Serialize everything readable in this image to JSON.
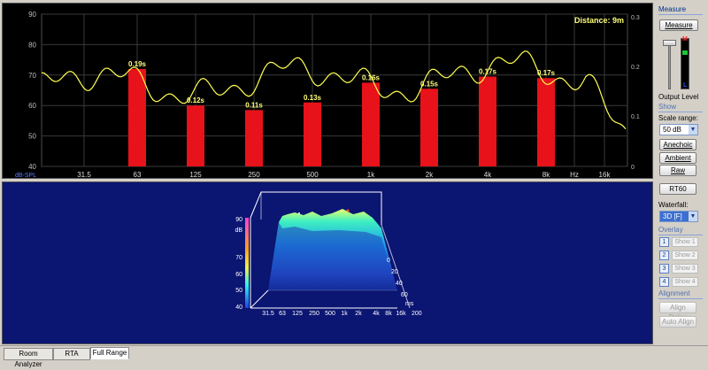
{
  "rta": {
    "distance_label": "Distance: 9m",
    "ylabel": "dB-SPL",
    "y_ticks": [
      "90",
      "80",
      "70",
      "60",
      "50",
      "40"
    ],
    "right_ticks": [
      "0.3",
      "0.2",
      "0.1",
      "0"
    ],
    "x_ticks": [
      "31.5",
      "63",
      "125",
      "250",
      "500",
      "1k",
      "2k",
      "4k",
      "8k",
      "Hz",
      "16k"
    ],
    "bars": [
      {
        "freq": "63",
        "level": 72,
        "rt": "0.19s"
      },
      {
        "freq": "125",
        "level": 60,
        "rt": "0.12s"
      },
      {
        "freq": "250",
        "level": 58.5,
        "rt": "0.11s"
      },
      {
        "freq": "500",
        "level": 61,
        "rt": "0.13s"
      },
      {
        "freq": "1k",
        "level": 67.5,
        "rt": "0.16s"
      },
      {
        "freq": "2k",
        "level": 65.5,
        "rt": "0.15s"
      },
      {
        "freq": "4k",
        "level": 69.5,
        "rt": "0.17s"
      },
      {
        "freq": "8k",
        "level": 69,
        "rt": "0.17s"
      }
    ],
    "colors": {
      "bar": "#e8121a",
      "curve": "#ffff50",
      "grid": "#3a3a3a",
      "label": "#ffff7a"
    }
  },
  "waterfall": {
    "z_ticks": [
      "90",
      "dB",
      "70",
      "60",
      "50",
      "40"
    ],
    "x_ticks": [
      "31.5",
      "63",
      "125",
      "250",
      "500",
      "1k",
      "2k",
      "4k",
      "8k",
      "16k"
    ],
    "t_ticks": [
      "0",
      "20",
      "40",
      "60",
      "ms",
      "200"
    ]
  },
  "panel": {
    "measure_title": "Measure",
    "measure_button": "Measure",
    "meter_top": "M",
    "meter_bottom": "L",
    "output_level": "Output Level",
    "show_title": "Show",
    "scale_range_label": "Scale range:",
    "scale_range_value": "50 dB",
    "anechoic": "Anechoic",
    "ambient": "Ambient",
    "raw": "Raw",
    "rt60": "RT60",
    "waterfall_label": "Waterfall:",
    "waterfall_value": "3D [F]",
    "overlay_title": "Overlay",
    "overlays": [
      {
        "num": "1",
        "label": "Show 1"
      },
      {
        "num": "2",
        "label": "Show 2"
      },
      {
        "num": "3",
        "label": "Show 3"
      },
      {
        "num": "4",
        "label": "Show 4"
      }
    ],
    "alignment_title": "Alignment",
    "align_delay": "Align Delay",
    "auto_align": "Auto Align"
  },
  "tabs": [
    "Room Analyzer",
    "RTA",
    "Full Range"
  ],
  "active_tab": "Full Range"
}
